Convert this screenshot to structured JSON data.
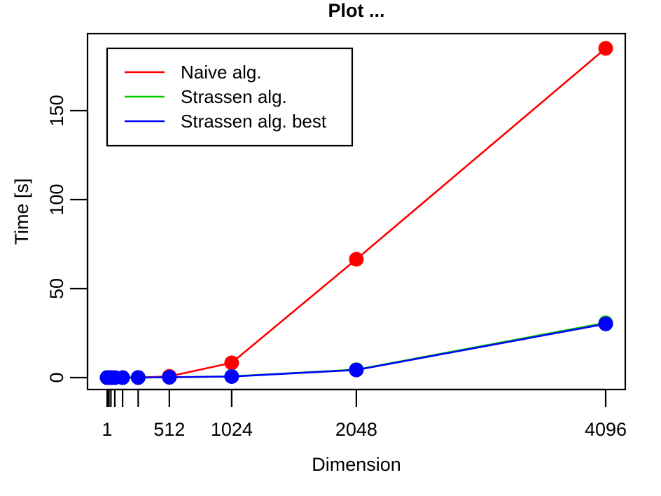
{
  "chart_data": {
    "type": "line",
    "title": "Plot ...",
    "xlabel": "Dimension",
    "ylabel": "Time [s]",
    "x": [
      1,
      2,
      4,
      8,
      16,
      32,
      64,
      128,
      256,
      512,
      1024,
      2048,
      4096
    ],
    "xlim": [
      1,
      4096
    ],
    "ylim": [
      0,
      185
    ],
    "x_ticks": [
      1,
      2,
      4,
      8,
      16,
      32,
      64,
      128,
      256,
      512,
      1024,
      2048,
      4096
    ],
    "x_tick_labels": [
      "1",
      "",
      "",
      "",
      "",
      "",
      "",
      "",
      "",
      "512",
      "1024",
      "2048",
      "4096"
    ],
    "y_ticks": [
      0,
      50,
      100,
      150
    ],
    "y_tick_labels": [
      "0",
      "50",
      "100",
      "150"
    ],
    "grid": false,
    "legend_position": "top-left",
    "series": [
      {
        "name": "Naive alg.",
        "color": "#ff0000",
        "values": [
          0,
          0,
          0,
          0,
          0,
          0,
          0,
          0,
          0.05,
          0.7,
          8.3,
          66.5,
          185
        ]
      },
      {
        "name": "Strassen alg.",
        "color": "#00cd00",
        "values": [
          0,
          0,
          0,
          0,
          0,
          0,
          0,
          0,
          0.05,
          0.2,
          0.7,
          4.5,
          30.8
        ]
      },
      {
        "name": "Strassen alg. best",
        "color": "#0000ff",
        "values": [
          0,
          0,
          0,
          0,
          0,
          0,
          0,
          0,
          0.05,
          0.2,
          0.6,
          4.3,
          30.2
        ]
      }
    ]
  }
}
